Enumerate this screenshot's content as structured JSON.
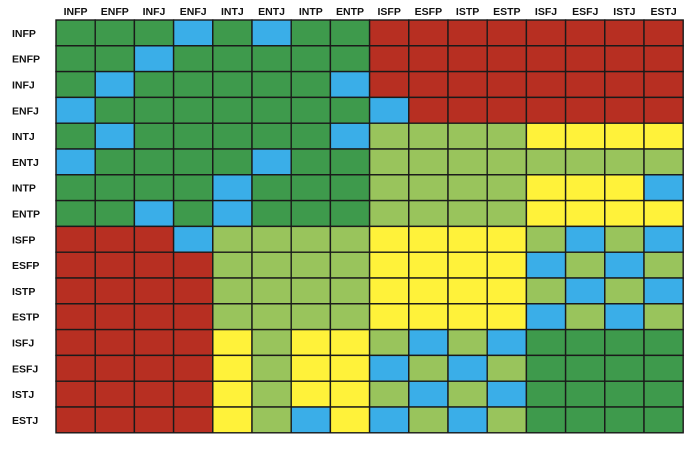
{
  "chart_data": {
    "type": "heatmap",
    "title": "",
    "xlabel": "",
    "ylabel": "",
    "columns": [
      "INFP",
      "ENFP",
      "INFJ",
      "ENFJ",
      "INTJ",
      "ENTJ",
      "INTP",
      "ENTP",
      "ISFP",
      "ESFP",
      "ISTP",
      "ESTP",
      "ISFJ",
      "ESFJ",
      "ISTJ",
      "ESTJ"
    ],
    "rows": [
      "INFP",
      "ENFP",
      "INFJ",
      "ENFJ",
      "INTJ",
      "ENTJ",
      "INTP",
      "ENTP",
      "ISFP",
      "ESFP",
      "ISTP",
      "ESTP",
      "ISFJ",
      "ESFJ",
      "ISTJ",
      "ESTJ"
    ],
    "legend": {
      "B": "#3aaee8",
      "G": "#3e9a4c",
      "L": "#99c45c",
      "Y": "#fff23a",
      "R": "#b72f22"
    },
    "grid_color": "#1a1a1a",
    "matrix": [
      "GGGBGBGGRRRRRRRR",
      "GGBGGGGGRRRRRRRR",
      "GBGGGGGBRRRRRRRR",
      "BGGGGGGGBRRRRRRR",
      "GBGGGGGBLLLLYYYY",
      "BGGGGBGGLLLLLLLL",
      "GGGGBGGGLLLLYYYB",
      "GGBGBGGGLLLLYYYY",
      "RRRBLLLLYYYYLBLB",
      "RRRRLLLLYYYYBLBL",
      "RRRRLLLLYYYYLBLB",
      "RRRRLLLLYYYYBLBL",
      "RRRRYLYYLBLBGGGG",
      "RRRRYLYYBLBLGGGG",
      "RRRRYLYYLBLBGGGG",
      "RRRRYLBYBLBLGGGG"
    ]
  }
}
